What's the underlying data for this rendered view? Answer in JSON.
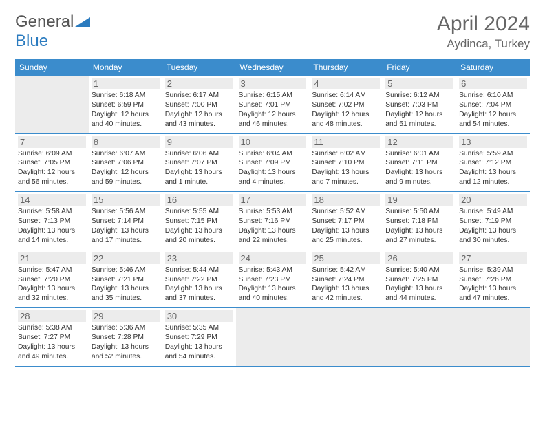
{
  "logo": {
    "part1": "General",
    "part2": "Blue"
  },
  "title": "April 2024",
  "location": "Aydinca, Turkey",
  "colors": {
    "header_bg": "#3b8ccc",
    "header_fg": "#ffffff",
    "border": "#3b8ccc",
    "shade": "#ececec",
    "text": "#333333",
    "title_color": "#666666"
  },
  "weekday_labels": [
    "Sunday",
    "Monday",
    "Tuesday",
    "Wednesday",
    "Thursday",
    "Friday",
    "Saturday"
  ],
  "days": {
    "1": {
      "sunrise": "6:18 AM",
      "sunset": "6:59 PM",
      "dl": "12 hours and 40 minutes."
    },
    "2": {
      "sunrise": "6:17 AM",
      "sunset": "7:00 PM",
      "dl": "12 hours and 43 minutes."
    },
    "3": {
      "sunrise": "6:15 AM",
      "sunset": "7:01 PM",
      "dl": "12 hours and 46 minutes."
    },
    "4": {
      "sunrise": "6:14 AM",
      "sunset": "7:02 PM",
      "dl": "12 hours and 48 minutes."
    },
    "5": {
      "sunrise": "6:12 AM",
      "sunset": "7:03 PM",
      "dl": "12 hours and 51 minutes."
    },
    "6": {
      "sunrise": "6:10 AM",
      "sunset": "7:04 PM",
      "dl": "12 hours and 54 minutes."
    },
    "7": {
      "sunrise": "6:09 AM",
      "sunset": "7:05 PM",
      "dl": "12 hours and 56 minutes."
    },
    "8": {
      "sunrise": "6:07 AM",
      "sunset": "7:06 PM",
      "dl": "12 hours and 59 minutes."
    },
    "9": {
      "sunrise": "6:06 AM",
      "sunset": "7:07 PM",
      "dl": "13 hours and 1 minute."
    },
    "10": {
      "sunrise": "6:04 AM",
      "sunset": "7:09 PM",
      "dl": "13 hours and 4 minutes."
    },
    "11": {
      "sunrise": "6:02 AM",
      "sunset": "7:10 PM",
      "dl": "13 hours and 7 minutes."
    },
    "12": {
      "sunrise": "6:01 AM",
      "sunset": "7:11 PM",
      "dl": "13 hours and 9 minutes."
    },
    "13": {
      "sunrise": "5:59 AM",
      "sunset": "7:12 PM",
      "dl": "13 hours and 12 minutes."
    },
    "14": {
      "sunrise": "5:58 AM",
      "sunset": "7:13 PM",
      "dl": "13 hours and 14 minutes."
    },
    "15": {
      "sunrise": "5:56 AM",
      "sunset": "7:14 PM",
      "dl": "13 hours and 17 minutes."
    },
    "16": {
      "sunrise": "5:55 AM",
      "sunset": "7:15 PM",
      "dl": "13 hours and 20 minutes."
    },
    "17": {
      "sunrise": "5:53 AM",
      "sunset": "7:16 PM",
      "dl": "13 hours and 22 minutes."
    },
    "18": {
      "sunrise": "5:52 AM",
      "sunset": "7:17 PM",
      "dl": "13 hours and 25 minutes."
    },
    "19": {
      "sunrise": "5:50 AM",
      "sunset": "7:18 PM",
      "dl": "13 hours and 27 minutes."
    },
    "20": {
      "sunrise": "5:49 AM",
      "sunset": "7:19 PM",
      "dl": "13 hours and 30 minutes."
    },
    "21": {
      "sunrise": "5:47 AM",
      "sunset": "7:20 PM",
      "dl": "13 hours and 32 minutes."
    },
    "22": {
      "sunrise": "5:46 AM",
      "sunset": "7:21 PM",
      "dl": "13 hours and 35 minutes."
    },
    "23": {
      "sunrise": "5:44 AM",
      "sunset": "7:22 PM",
      "dl": "13 hours and 37 minutes."
    },
    "24": {
      "sunrise": "5:43 AM",
      "sunset": "7:23 PM",
      "dl": "13 hours and 40 minutes."
    },
    "25": {
      "sunrise": "5:42 AM",
      "sunset": "7:24 PM",
      "dl": "13 hours and 42 minutes."
    },
    "26": {
      "sunrise": "5:40 AM",
      "sunset": "7:25 PM",
      "dl": "13 hours and 44 minutes."
    },
    "27": {
      "sunrise": "5:39 AM",
      "sunset": "7:26 PM",
      "dl": "13 hours and 47 minutes."
    },
    "28": {
      "sunrise": "5:38 AM",
      "sunset": "7:27 PM",
      "dl": "13 hours and 49 minutes."
    },
    "29": {
      "sunrise": "5:36 AM",
      "sunset": "7:28 PM",
      "dl": "13 hours and 52 minutes."
    },
    "30": {
      "sunrise": "5:35 AM",
      "sunset": "7:29 PM",
      "dl": "13 hours and 54 minutes."
    }
  },
  "labels": {
    "sunrise": "Sunrise: ",
    "sunset": "Sunset: ",
    "daylight": "Daylight: "
  },
  "layout": {
    "first_weekday_index": 1,
    "num_days": 30,
    "rows": 5,
    "cols": 7
  }
}
